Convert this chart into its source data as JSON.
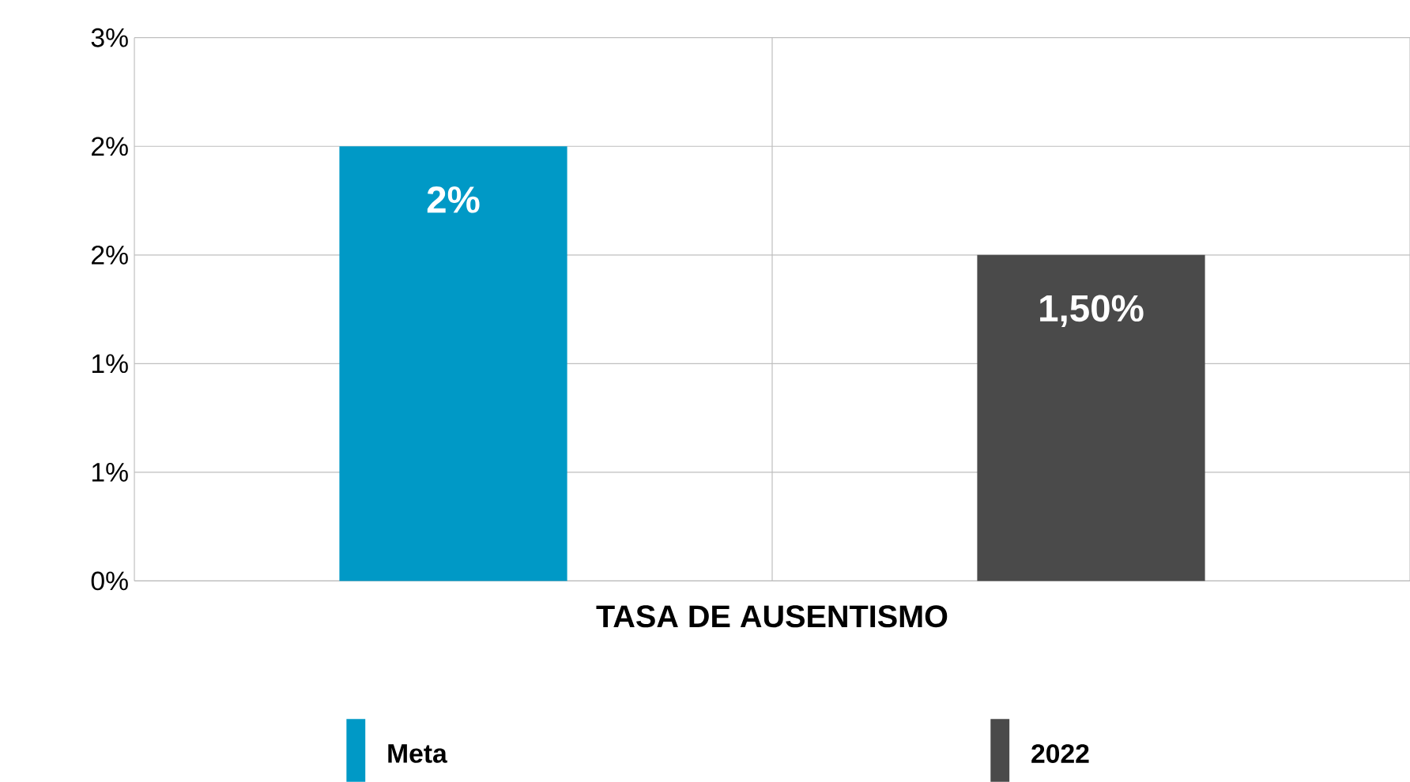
{
  "chart_data": {
    "type": "bar",
    "xlabel": "TASA DE AUSENTISMO",
    "categories": [
      null,
      null
    ],
    "series": [
      {
        "name": "Meta",
        "color": "#0099c6",
        "values": [
          2,
          null
        ],
        "value_labels": [
          "2%",
          null
        ]
      },
      {
        "name": "2022",
        "color": "#4a4a4a",
        "values": [
          null,
          1.5
        ],
        "value_labels": [
          null,
          "1,50%"
        ]
      }
    ],
    "ylim": [
      0,
      2.5
    ],
    "yticks": [
      {
        "value": 0,
        "label": "0%"
      },
      {
        "value": 0.5,
        "label": "1%"
      },
      {
        "value": 1,
        "label": "1%"
      },
      {
        "value": 1.5,
        "label": "2%"
      },
      {
        "value": 2,
        "label": "2%"
      },
      {
        "value": 2.5,
        "label": "3%"
      }
    ],
    "grid": true,
    "legend": "bottom"
  }
}
